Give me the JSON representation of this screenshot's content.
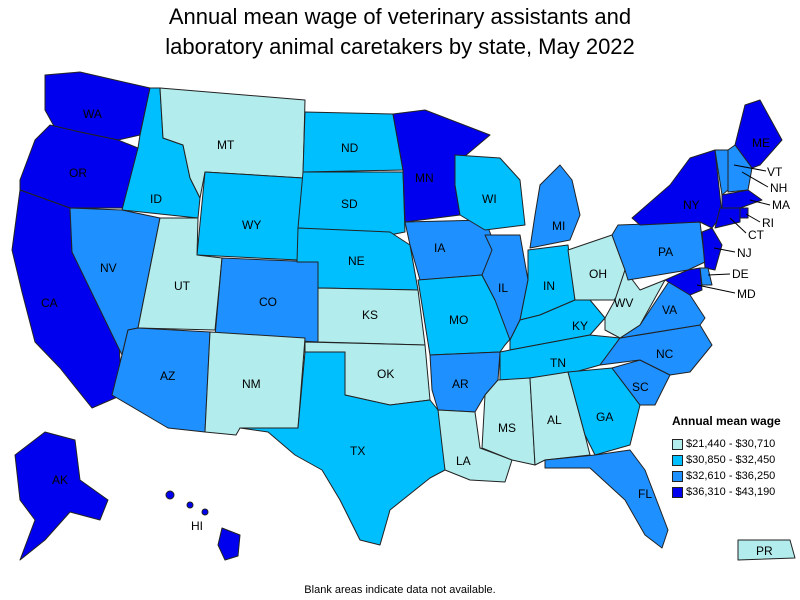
{
  "title_line1": "Annual mean wage of veterinary assistants and",
  "title_line2": "laboratory animal caretakers by state, May 2022",
  "legend": {
    "title": "Annual mean wage",
    "items": [
      {
        "label": "$21,440 - $30,710",
        "color": "#b3ecec"
      },
      {
        "label": "$30,850 - $32,450",
        "color": "#00bfff"
      },
      {
        "label": "$32,610 - $36,250",
        "color": "#1e90ff"
      },
      {
        "label": "$36,310 - $43,190",
        "color": "#0000ee"
      }
    ]
  },
  "footnote": "Blank areas indicate data not available.",
  "states": {
    "WA": {
      "label": "WA",
      "tier": 4
    },
    "OR": {
      "label": "OR",
      "tier": 4
    },
    "CA": {
      "label": "CA",
      "tier": 4
    },
    "ID": {
      "label": "ID",
      "tier": 2
    },
    "NV": {
      "label": "NV",
      "tier": 3
    },
    "MT": {
      "label": "MT",
      "tier": 1
    },
    "WY": {
      "label": "WY",
      "tier": 2
    },
    "UT": {
      "label": "UT",
      "tier": 1
    },
    "AZ": {
      "label": "AZ",
      "tier": 3
    },
    "CO": {
      "label": "CO",
      "tier": 3
    },
    "NM": {
      "label": "NM",
      "tier": 1
    },
    "ND": {
      "label": "ND",
      "tier": 2
    },
    "SD": {
      "label": "SD",
      "tier": 2
    },
    "NE": {
      "label": "NE",
      "tier": 2
    },
    "KS": {
      "label": "KS",
      "tier": 1
    },
    "OK": {
      "label": "OK",
      "tier": 1
    },
    "TX": {
      "label": "TX",
      "tier": 2
    },
    "MN": {
      "label": "MN",
      "tier": 4
    },
    "IA": {
      "label": "IA",
      "tier": 3
    },
    "MO": {
      "label": "MO",
      "tier": 2
    },
    "AR": {
      "label": "AR",
      "tier": 3
    },
    "LA": {
      "label": "LA",
      "tier": 1
    },
    "WI": {
      "label": "WI",
      "tier": 2
    },
    "IL": {
      "label": "IL",
      "tier": 3
    },
    "MI": {
      "label": "MI",
      "tier": 3
    },
    "IN": {
      "label": "IN",
      "tier": 2
    },
    "OH": {
      "label": "OH",
      "tier": 1
    },
    "KY": {
      "label": "KY",
      "tier": 2
    },
    "TN": {
      "label": "TN",
      "tier": 2
    },
    "MS": {
      "label": "MS",
      "tier": 1
    },
    "AL": {
      "label": "AL",
      "tier": 1
    },
    "GA": {
      "label": "GA",
      "tier": 2
    },
    "FL": {
      "label": "FL",
      "tier": 3
    },
    "SC": {
      "label": "SC",
      "tier": 3
    },
    "NC": {
      "label": "NC",
      "tier": 3
    },
    "VA": {
      "label": "VA",
      "tier": 3
    },
    "WV": {
      "label": "WV",
      "tier": 1
    },
    "PA": {
      "label": "PA",
      "tier": 3
    },
    "NY": {
      "label": "NY",
      "tier": 4
    },
    "ME": {
      "label": "ME",
      "tier": 4
    },
    "VT": {
      "label": "VT",
      "tier": 3
    },
    "NH": {
      "label": "NH",
      "tier": 3
    },
    "MA": {
      "label": "MA",
      "tier": 4
    },
    "RI": {
      "label": "RI",
      "tier": 4
    },
    "CT": {
      "label": "CT",
      "tier": 4
    },
    "NJ": {
      "label": "NJ",
      "tier": 4
    },
    "DE": {
      "label": "DE",
      "tier": 3
    },
    "MD": {
      "label": "MD",
      "tier": 4
    },
    "AK": {
      "label": "AK",
      "tier": 4
    },
    "HI": {
      "label": "HI",
      "tier": 4
    },
    "PR": {
      "label": "PR",
      "tier": 1
    }
  }
}
